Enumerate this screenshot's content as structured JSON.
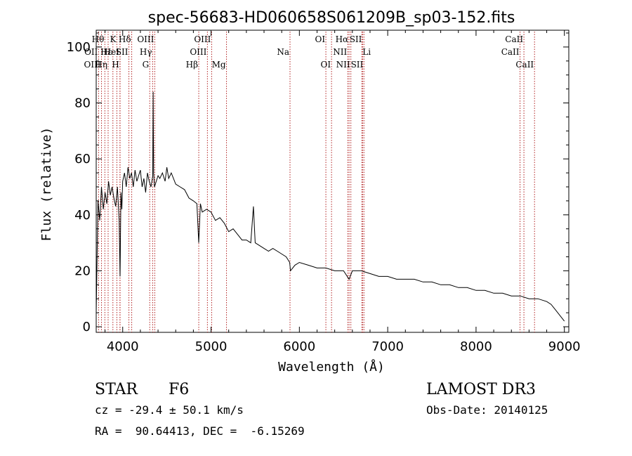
{
  "chart_data": {
    "type": "line",
    "title": "spec-56683-HD060658S061209B_sp03-152.fits",
    "xlabel": "Wavelength (Å)",
    "ylabel": "Flux (relative)",
    "xlim": [
      3700,
      9050
    ],
    "ylim": [
      -2,
      106
    ],
    "grid": false,
    "x_ticks": [
      4000,
      5000,
      6000,
      7000,
      8000,
      9000
    ],
    "y_ticks": [
      0,
      20,
      40,
      60,
      80,
      100
    ],
    "x_tick_labels": [
      "4000",
      "5000",
      "6000",
      "7000",
      "8000",
      "9000"
    ],
    "y_tick_labels": [
      "0",
      "20",
      "40",
      "60",
      "80",
      "100"
    ],
    "series": [
      {
        "name": "spectrum",
        "color": "#000000",
        "x": [
          3700,
          3720,
          3740,
          3760,
          3780,
          3800,
          3820,
          3840,
          3860,
          3880,
          3900,
          3920,
          3940,
          3960,
          3970,
          3980,
          3990,
          4000,
          4020,
          4040,
          4060,
          4080,
          4100,
          4120,
          4140,
          4160,
          4180,
          4200,
          4220,
          4240,
          4260,
          4280,
          4300,
          4320,
          4340,
          4345,
          4350,
          4360,
          4380,
          4400,
          4420,
          4450,
          4480,
          4500,
          4520,
          4550,
          4600,
          4650,
          4700,
          4750,
          4800,
          4840,
          4861,
          4880,
          4900,
          4950,
          5000,
          5050,
          5100,
          5150,
          5200,
          5250,
          5300,
          5350,
          5400,
          5450,
          5480,
          5500,
          5550,
          5600,
          5650,
          5700,
          5750,
          5800,
          5850,
          5890,
          5900,
          5950,
          6000,
          6100,
          6200,
          6300,
          6400,
          6500,
          6563,
          6600,
          6700,
          6800,
          6900,
          7000,
          7100,
          7200,
          7300,
          7400,
          7500,
          7600,
          7700,
          7800,
          7900,
          8000,
          8100,
          8200,
          8300,
          8400,
          8500,
          8600,
          8700,
          8800,
          8850,
          8900,
          8950,
          9000
        ],
        "values": [
          5,
          45,
          38,
          50,
          42,
          48,
          44,
          52,
          47,
          50,
          46,
          43,
          50,
          38,
          18,
          48,
          42,
          52,
          55,
          50,
          57,
          53,
          55,
          50,
          56,
          52,
          54,
          56,
          50,
          53,
          48,
          55,
          52,
          50,
          54,
          84,
          55,
          50,
          52,
          54,
          53,
          55,
          52,
          57,
          53,
          55,
          51,
          50,
          49,
          46,
          45,
          44,
          30,
          44,
          41,
          42,
          41,
          38,
          39,
          37,
          34,
          35,
          33,
          31,
          31,
          30,
          43,
          30,
          29,
          28,
          27,
          28,
          27,
          26,
          25,
          23,
          20,
          22,
          23,
          22,
          21,
          21,
          20,
          20,
          17,
          20,
          20,
          19,
          18,
          18,
          17,
          17,
          17,
          16,
          16,
          15,
          15,
          14,
          14,
          13,
          13,
          12,
          12,
          11,
          11,
          10,
          10,
          9,
          8,
          6,
          4,
          2
        ]
      }
    ],
    "lines": [
      {
        "label": "Hθ",
        "x": 3798,
        "row": 0,
        "anchor": "end"
      },
      {
        "label": "OII",
        "x": 3727,
        "row": 1,
        "anchor": "end"
      },
      {
        "label": "OIII",
        "x": 3760,
        "row": 2,
        "anchor": "end"
      },
      {
        "label": "Hη",
        "x": 3835,
        "row": 2,
        "anchor": "end"
      },
      {
        "label": "Hε",
        "x": 3889,
        "row": 1,
        "anchor": "end"
      },
      {
        "label": "K",
        "x": 3934,
        "row": 0,
        "anchor": "end"
      },
      {
        "label": "H",
        "x": 3969,
        "row": 2,
        "anchor": "end"
      },
      {
        "label": "HeI",
        "x": 3970,
        "row": 1,
        "anchor": "end"
      },
      {
        "label": "Hδ",
        "x": 4102,
        "row": 0,
        "anchor": "end"
      },
      {
        "label": "SII",
        "x": 4070,
        "row": 1,
        "anchor": "end"
      },
      {
        "label": "G",
        "x": 4306,
        "row": 2,
        "anchor": "end"
      },
      {
        "label": "OIII",
        "x": 4363,
        "row": 0,
        "anchor": "end"
      },
      {
        "label": "Hγ",
        "x": 4340,
        "row": 1,
        "anchor": "end"
      },
      {
        "label": "Hβ",
        "x": 4861,
        "row": 2,
        "anchor": "end"
      },
      {
        "label": "OIII",
        "x": 4959,
        "row": 1,
        "anchor": "end"
      },
      {
        "label": "OIII",
        "x": 5007,
        "row": 0,
        "anchor": "end"
      },
      {
        "label": "Mg",
        "x": 5175,
        "row": 2,
        "anchor": "end"
      },
      {
        "label": "Na",
        "x": 5894,
        "row": 1,
        "anchor": "end"
      },
      {
        "label": "OI",
        "x": 6300,
        "row": 0,
        "anchor": "end"
      },
      {
        "label": "OI",
        "x": 6364,
        "row": 2,
        "anchor": "end"
      },
      {
        "label": "NII",
        "x": 6548,
        "row": 1,
        "anchor": "end"
      },
      {
        "label": "Hα",
        "x": 6563,
        "row": 0,
        "anchor": "end"
      },
      {
        "label": "NII",
        "x": 6583,
        "row": 2,
        "anchor": "end"
      },
      {
        "label": "Li",
        "x": 6707,
        "row": 1,
        "anchor": "start"
      },
      {
        "label": "SII",
        "x": 6716,
        "row": 0,
        "anchor": "end"
      },
      {
        "label": "SII",
        "x": 6731,
        "row": 2,
        "anchor": "end"
      },
      {
        "label": "CaII",
        "x": 8498,
        "row": 1,
        "anchor": "end"
      },
      {
        "label": "CaII",
        "x": 8542,
        "row": 0,
        "anchor": "end"
      },
      {
        "label": "CaII",
        "x": 8662,
        "row": 2,
        "anchor": "end"
      }
    ],
    "line_color": "#b22222"
  },
  "info": {
    "object_class": "STAR",
    "subclass": "F6",
    "survey": "LAMOST DR3",
    "redshift": "cz = -29.4 ± 50.1 km/s",
    "obs_date": "Obs-Date: 20140125",
    "coords": "RA =  90.64413, DEC =  -6.15269"
  }
}
